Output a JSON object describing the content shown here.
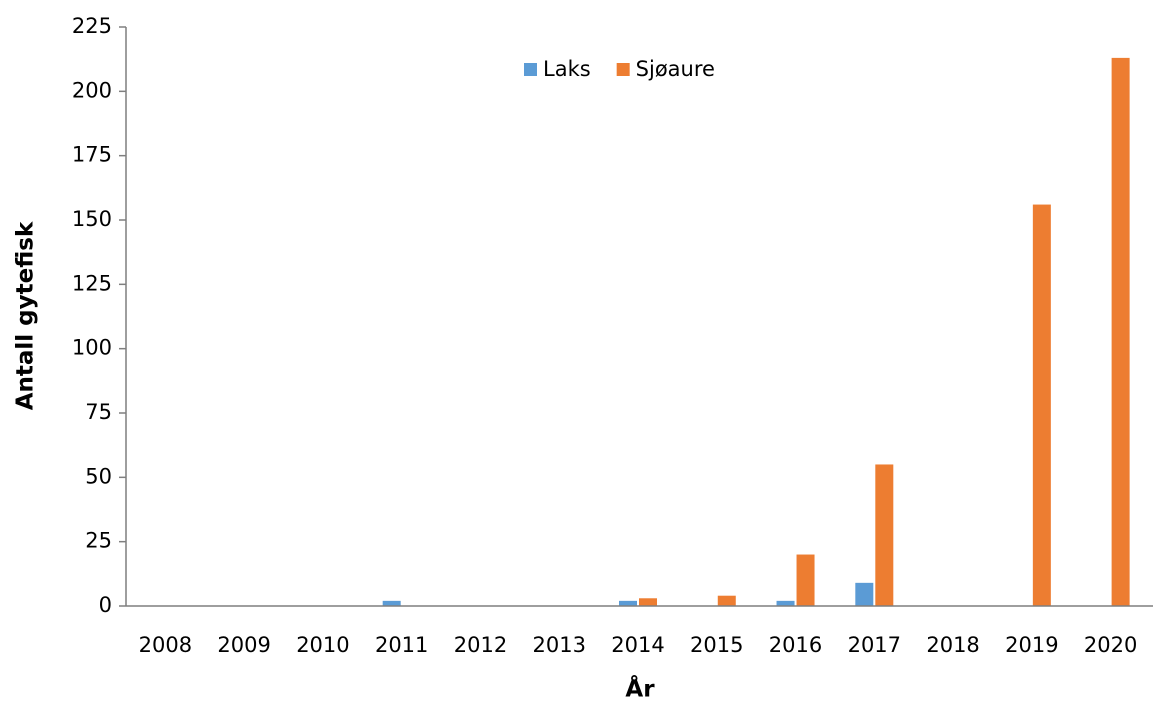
{
  "chart_data": {
    "type": "bar",
    "categories": [
      "2008",
      "2009",
      "2010",
      "2011",
      "2012",
      "2013",
      "2014",
      "2015",
      "2016",
      "2017",
      "2018",
      "2019",
      "2020"
    ],
    "series": [
      {
        "name": "Laks",
        "color": "#5b9bd5",
        "values": [
          0,
          0,
          0,
          2,
          0,
          0,
          2,
          0,
          2,
          9,
          0,
          0,
          0
        ]
      },
      {
        "name": "Sjøaure",
        "color": "#ed7d31",
        "values": [
          0,
          0,
          0,
          0,
          0,
          0,
          3,
          4,
          20,
          55,
          0,
          156,
          213
        ]
      }
    ],
    "x_label": "År",
    "y_label": "Antall gytefisk",
    "ylim": [
      0,
      225
    ],
    "yticks": [
      0,
      25,
      50,
      75,
      100,
      125,
      150,
      175,
      200,
      225
    ],
    "grid": false,
    "legend": "top"
  }
}
